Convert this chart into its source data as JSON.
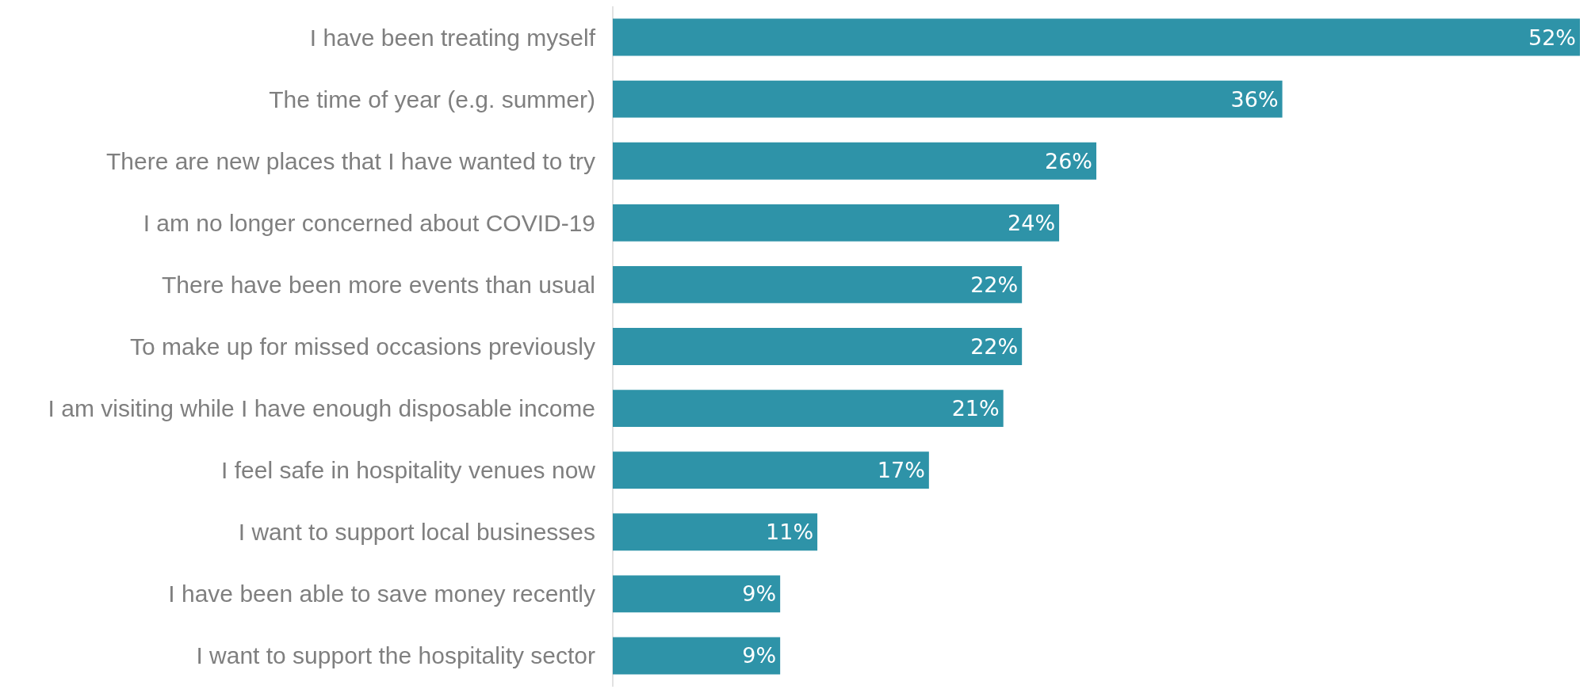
{
  "chart_data": {
    "type": "bar",
    "orientation": "horizontal",
    "categories": [
      "I have been treating myself",
      "The time of year (e.g. summer)",
      "There are new places that I have wanted to try",
      "I am no longer concerned about COVID-19",
      "There have been more events than usual",
      "To make up for missed occasions previously",
      "I am visiting while I have enough disposable income",
      "I feel safe in hospitality venues now",
      "I want to support local businesses",
      "I have been able to save money recently",
      "I want to support the hospitality sector"
    ],
    "values": [
      52,
      36,
      26,
      24,
      22,
      22,
      21,
      17,
      11,
      9,
      9
    ],
    "value_labels": [
      "52%",
      "36%",
      "26%",
      "24%",
      "22%",
      "22%",
      "21%",
      "17%",
      "11%",
      "9%",
      "9%"
    ],
    "color": "#2e93a8"
  }
}
